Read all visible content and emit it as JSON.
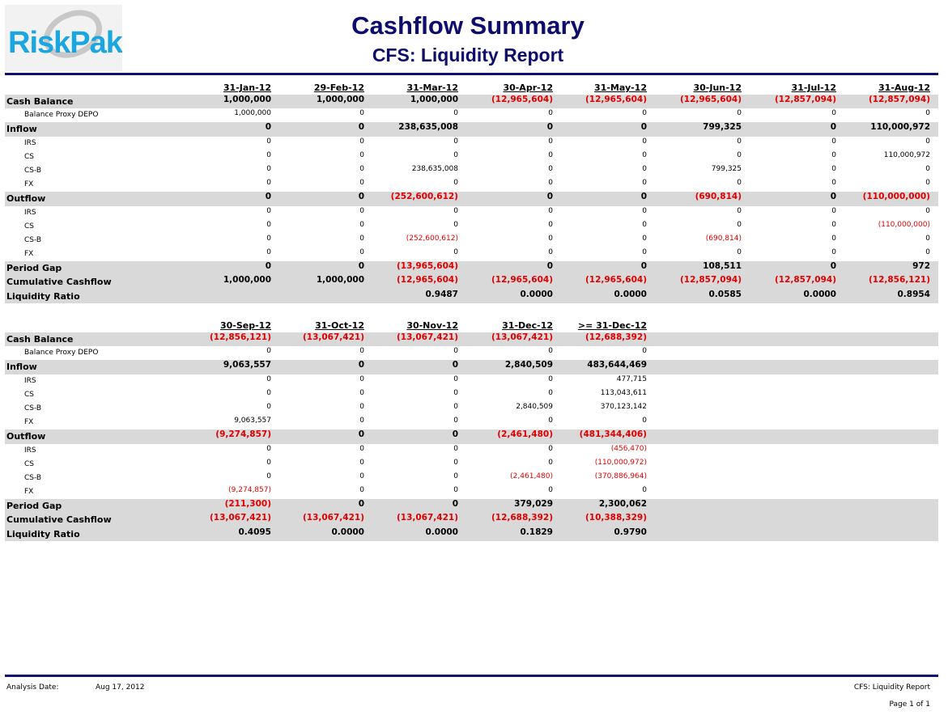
{
  "logo": {
    "text": "RiskPak"
  },
  "title": "Cashflow Summary",
  "subtitle": "CFS: Liquidity Report",
  "reports": [
    {
      "columns": [
        "31-Jan-12",
        "29-Feb-12",
        "31-Mar-12",
        "30-Apr-12",
        "31-May-12",
        "30-Jun-12",
        "31-Jul-12",
        "31-Aug-12"
      ],
      "rows": [
        {
          "label": "Cash Balance",
          "kind": "band",
          "values": [
            "1,000,000",
            "1,000,000",
            "1,000,000",
            "(12,965,604)",
            "(12,965,604)",
            "(12,965,604)",
            "(12,857,094)",
            "(12,857,094)"
          ]
        },
        {
          "label": "Balance Proxy DEPO",
          "kind": "sub",
          "values": [
            "1,000,000",
            "0",
            "0",
            "0",
            "0",
            "0",
            "0",
            "0"
          ]
        },
        {
          "label": "Inflow",
          "kind": "band",
          "values": [
            "0",
            "0",
            "238,635,008",
            "0",
            "0",
            "799,325",
            "0",
            "110,000,972"
          ]
        },
        {
          "label": "IRS",
          "kind": "sub",
          "values": [
            "0",
            "0",
            "0",
            "0",
            "0",
            "0",
            "0",
            "0"
          ]
        },
        {
          "label": "CS",
          "kind": "sub",
          "values": [
            "0",
            "0",
            "0",
            "0",
            "0",
            "0",
            "0",
            "110,000,972"
          ]
        },
        {
          "label": "CS-B",
          "kind": "sub",
          "values": [
            "0",
            "0",
            "238,635,008",
            "0",
            "0",
            "799,325",
            "0",
            "0"
          ]
        },
        {
          "label": "FX",
          "kind": "sub",
          "values": [
            "0",
            "0",
            "0",
            "0",
            "0",
            "0",
            "0",
            "0"
          ]
        },
        {
          "label": "Outflow",
          "kind": "band",
          "values": [
            "0",
            "0",
            "(252,600,612)",
            "0",
            "0",
            "(690,814)",
            "0",
            "(110,000,000)"
          ]
        },
        {
          "label": "IRS",
          "kind": "sub",
          "values": [
            "0",
            "0",
            "0",
            "0",
            "0",
            "0",
            "0",
            "0"
          ]
        },
        {
          "label": "CS",
          "kind": "sub",
          "values": [
            "0",
            "0",
            "0",
            "0",
            "0",
            "0",
            "0",
            "(110,000,000)"
          ]
        },
        {
          "label": "CS-B",
          "kind": "sub",
          "values": [
            "0",
            "0",
            "(252,600,612)",
            "0",
            "0",
            "(690,814)",
            "0",
            "0"
          ]
        },
        {
          "label": "FX",
          "kind": "sub",
          "values": [
            "0",
            "0",
            "0",
            "0",
            "0",
            "0",
            "0",
            "0"
          ]
        },
        {
          "label": "Period Gap",
          "kind": "band",
          "values": [
            "0",
            "0",
            "(13,965,604)",
            "0",
            "0",
            "108,511",
            "0",
            "972"
          ]
        },
        {
          "label": "Cumulative Cashflow",
          "kind": "band",
          "values": [
            "1,000,000",
            "1,000,000",
            "(12,965,604)",
            "(12,965,604)",
            "(12,965,604)",
            "(12,857,094)",
            "(12,857,094)",
            "(12,856,121)"
          ]
        },
        {
          "label": "Liquidity Ratio",
          "kind": "band",
          "values": [
            "",
            "",
            "0.9487",
            "0.0000",
            "0.0000",
            "0.0585",
            "0.0000",
            "0.8954"
          ]
        }
      ]
    },
    {
      "columns": [
        "30-Sep-12",
        "31-Oct-12",
        "30-Nov-12",
        "31-Dec-12",
        ">= 31-Dec-12"
      ],
      "rows": [
        {
          "label": "Cash Balance",
          "kind": "band",
          "values": [
            "(12,856,121)",
            "(13,067,421)",
            "(13,067,421)",
            "(13,067,421)",
            "(12,688,392)"
          ]
        },
        {
          "label": "Balance Proxy DEPO",
          "kind": "sub",
          "values": [
            "0",
            "0",
            "0",
            "0",
            "0"
          ]
        },
        {
          "label": "Inflow",
          "kind": "band",
          "values": [
            "9,063,557",
            "0",
            "0",
            "2,840,509",
            "483,644,469"
          ]
        },
        {
          "label": "IRS",
          "kind": "sub",
          "values": [
            "0",
            "0",
            "0",
            "0",
            "477,715"
          ]
        },
        {
          "label": "CS",
          "kind": "sub",
          "values": [
            "0",
            "0",
            "0",
            "0",
            "113,043,611"
          ]
        },
        {
          "label": "CS-B",
          "kind": "sub",
          "values": [
            "0",
            "0",
            "0",
            "2,840,509",
            "370,123,142"
          ]
        },
        {
          "label": "FX",
          "kind": "sub",
          "values": [
            "9,063,557",
            "0",
            "0",
            "0",
            "0"
          ]
        },
        {
          "label": "Outflow",
          "kind": "band",
          "values": [
            "(9,274,857)",
            "0",
            "0",
            "(2,461,480)",
            "(481,344,406)"
          ]
        },
        {
          "label": "IRS",
          "kind": "sub",
          "values": [
            "0",
            "0",
            "0",
            "0",
            "(456,470)"
          ]
        },
        {
          "label": "CS",
          "kind": "sub",
          "values": [
            "0",
            "0",
            "0",
            "0",
            "(110,000,972)"
          ]
        },
        {
          "label": "CS-B",
          "kind": "sub",
          "values": [
            "0",
            "0",
            "0",
            "(2,461,480)",
            "(370,886,964)"
          ]
        },
        {
          "label": "FX",
          "kind": "sub",
          "values": [
            "(9,274,857)",
            "0",
            "0",
            "0",
            "0"
          ]
        },
        {
          "label": "Period Gap",
          "kind": "band",
          "values": [
            "(211,300)",
            "0",
            "0",
            "379,029",
            "2,300,062"
          ]
        },
        {
          "label": "Cumulative Cashflow",
          "kind": "band",
          "values": [
            "(13,067,421)",
            "(13,067,421)",
            "(13,067,421)",
            "(12,688,392)",
            "(10,388,329)"
          ]
        },
        {
          "label": "Liquidity Ratio",
          "kind": "band",
          "values": [
            "0.4095",
            "0.0000",
            "0.0000",
            "0.1829",
            "0.9790"
          ]
        }
      ]
    }
  ],
  "footer": {
    "analysis_label": "Analysis Date:",
    "analysis_date": "Aug 17, 2012",
    "report_name": "CFS: Liquidity Report",
    "page": "Page 1 of 1"
  },
  "colors": {
    "title": "#0d0d6b",
    "rule": "#101070",
    "band": "#d9d9d9",
    "negative": "#e00000",
    "logo": "#1aa6e0"
  }
}
